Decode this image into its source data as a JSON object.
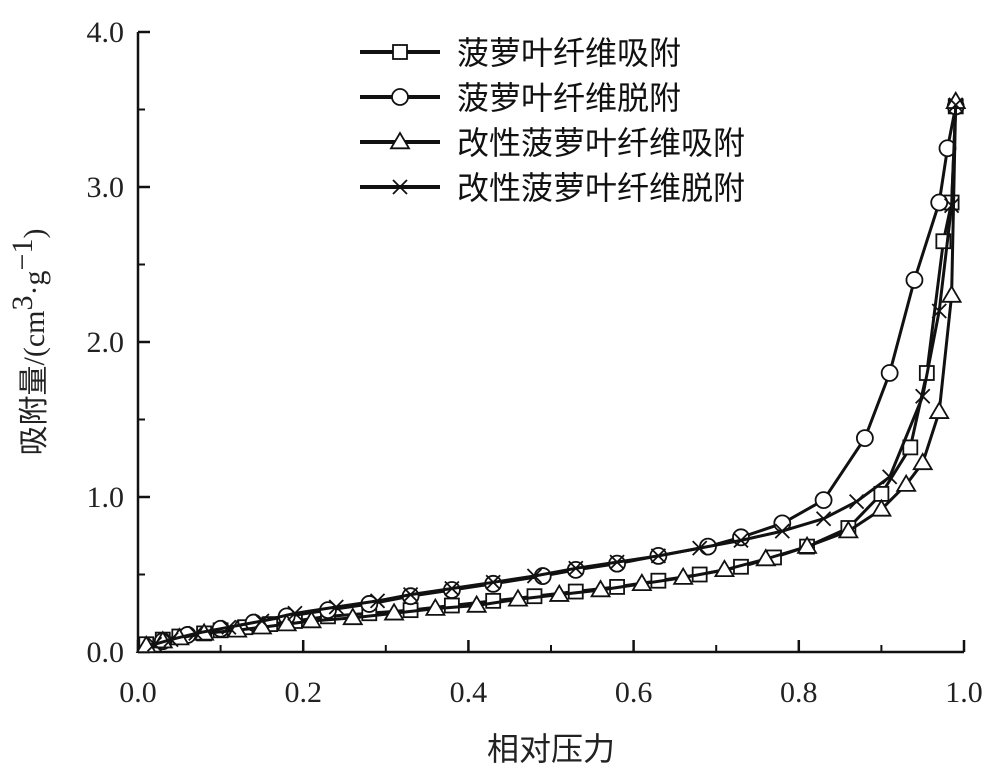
{
  "chart_data": {
    "type": "line",
    "title": "",
    "xlabel": "相对压力",
    "ylabel": {
      "main": "吸附量",
      "unit_prefix": "/(cm",
      "unit_sup1": "3",
      "unit_mid": "·g",
      "unit_sup2": "−1",
      "unit_suffix": ")"
    },
    "xlim": [
      0.0,
      1.0
    ],
    "ylim": [
      0.0,
      4.0
    ],
    "xticks": [
      "0.0",
      "0.2",
      "0.4",
      "0.6",
      "0.8",
      "1.0"
    ],
    "yticks": [
      "0.0",
      "1.0",
      "2.0",
      "3.0",
      "4.0"
    ],
    "legend_position": "top-right",
    "series": [
      {
        "name": "菠萝叶纤维吸附",
        "marker": "square",
        "points": [
          [
            0.01,
            0.05
          ],
          [
            0.03,
            0.08
          ],
          [
            0.05,
            0.1
          ],
          [
            0.08,
            0.12
          ],
          [
            0.1,
            0.14
          ],
          [
            0.13,
            0.16
          ],
          [
            0.16,
            0.18
          ],
          [
            0.19,
            0.2
          ],
          [
            0.23,
            0.23
          ],
          [
            0.28,
            0.25
          ],
          [
            0.33,
            0.27
          ],
          [
            0.38,
            0.3
          ],
          [
            0.43,
            0.33
          ],
          [
            0.48,
            0.36
          ],
          [
            0.53,
            0.39
          ],
          [
            0.58,
            0.42
          ],
          [
            0.63,
            0.46
          ],
          [
            0.68,
            0.5
          ],
          [
            0.73,
            0.55
          ],
          [
            0.77,
            0.61
          ],
          [
            0.81,
            0.68
          ],
          [
            0.86,
            0.8
          ],
          [
            0.9,
            1.02
          ],
          [
            0.935,
            1.32
          ],
          [
            0.955,
            1.8
          ],
          [
            0.975,
            2.65
          ],
          [
            0.985,
            2.9
          ],
          [
            0.99,
            3.52
          ]
        ]
      },
      {
        "name": "菠萝叶纤维脱附",
        "marker": "circle",
        "points": [
          [
            0.99,
            3.52
          ],
          [
            0.98,
            3.25
          ],
          [
            0.97,
            2.9
          ],
          [
            0.94,
            2.4
          ],
          [
            0.91,
            1.8
          ],
          [
            0.88,
            1.38
          ],
          [
            0.83,
            0.98
          ],
          [
            0.78,
            0.83
          ],
          [
            0.73,
            0.74
          ],
          [
            0.69,
            0.68
          ],
          [
            0.63,
            0.62
          ],
          [
            0.58,
            0.57
          ],
          [
            0.53,
            0.53
          ],
          [
            0.49,
            0.49
          ],
          [
            0.43,
            0.44
          ],
          [
            0.38,
            0.4
          ],
          [
            0.33,
            0.36
          ],
          [
            0.28,
            0.31
          ],
          [
            0.23,
            0.27
          ],
          [
            0.18,
            0.23
          ],
          [
            0.14,
            0.19
          ],
          [
            0.1,
            0.15
          ],
          [
            0.06,
            0.11
          ],
          [
            0.03,
            0.07
          ]
        ]
      },
      {
        "name": "改性菠萝叶纤维吸附",
        "marker": "triangle",
        "points": [
          [
            0.01,
            0.04
          ],
          [
            0.03,
            0.07
          ],
          [
            0.05,
            0.09
          ],
          [
            0.08,
            0.12
          ],
          [
            0.12,
            0.14
          ],
          [
            0.15,
            0.16
          ],
          [
            0.18,
            0.18
          ],
          [
            0.21,
            0.2
          ],
          [
            0.26,
            0.22
          ],
          [
            0.31,
            0.25
          ],
          [
            0.36,
            0.28
          ],
          [
            0.41,
            0.3
          ],
          [
            0.46,
            0.34
          ],
          [
            0.51,
            0.37
          ],
          [
            0.56,
            0.4
          ],
          [
            0.61,
            0.44
          ],
          [
            0.66,
            0.48
          ],
          [
            0.71,
            0.53
          ],
          [
            0.76,
            0.6
          ],
          [
            0.81,
            0.68
          ],
          [
            0.86,
            0.78
          ],
          [
            0.9,
            0.92
          ],
          [
            0.93,
            1.08
          ],
          [
            0.95,
            1.22
          ],
          [
            0.97,
            1.55
          ],
          [
            0.985,
            2.3
          ],
          [
            0.99,
            3.55
          ]
        ]
      },
      {
        "name": "改性菠萝叶纤维脱附",
        "marker": "cross",
        "points": [
          [
            0.99,
            3.53
          ],
          [
            0.985,
            2.88
          ],
          [
            0.97,
            2.2
          ],
          [
            0.95,
            1.65
          ],
          [
            0.91,
            1.13
          ],
          [
            0.87,
            0.97
          ],
          [
            0.83,
            0.86
          ],
          [
            0.78,
            0.78
          ],
          [
            0.73,
            0.72
          ],
          [
            0.68,
            0.67
          ],
          [
            0.63,
            0.62
          ],
          [
            0.58,
            0.58
          ],
          [
            0.53,
            0.54
          ],
          [
            0.48,
            0.49
          ],
          [
            0.43,
            0.45
          ],
          [
            0.38,
            0.41
          ],
          [
            0.33,
            0.37
          ],
          [
            0.29,
            0.33
          ],
          [
            0.24,
            0.29
          ],
          [
            0.19,
            0.25
          ],
          [
            0.15,
            0.2
          ],
          [
            0.11,
            0.16
          ],
          [
            0.07,
            0.12
          ],
          [
            0.04,
            0.08
          ],
          [
            0.02,
            0.05
          ]
        ]
      }
    ]
  }
}
